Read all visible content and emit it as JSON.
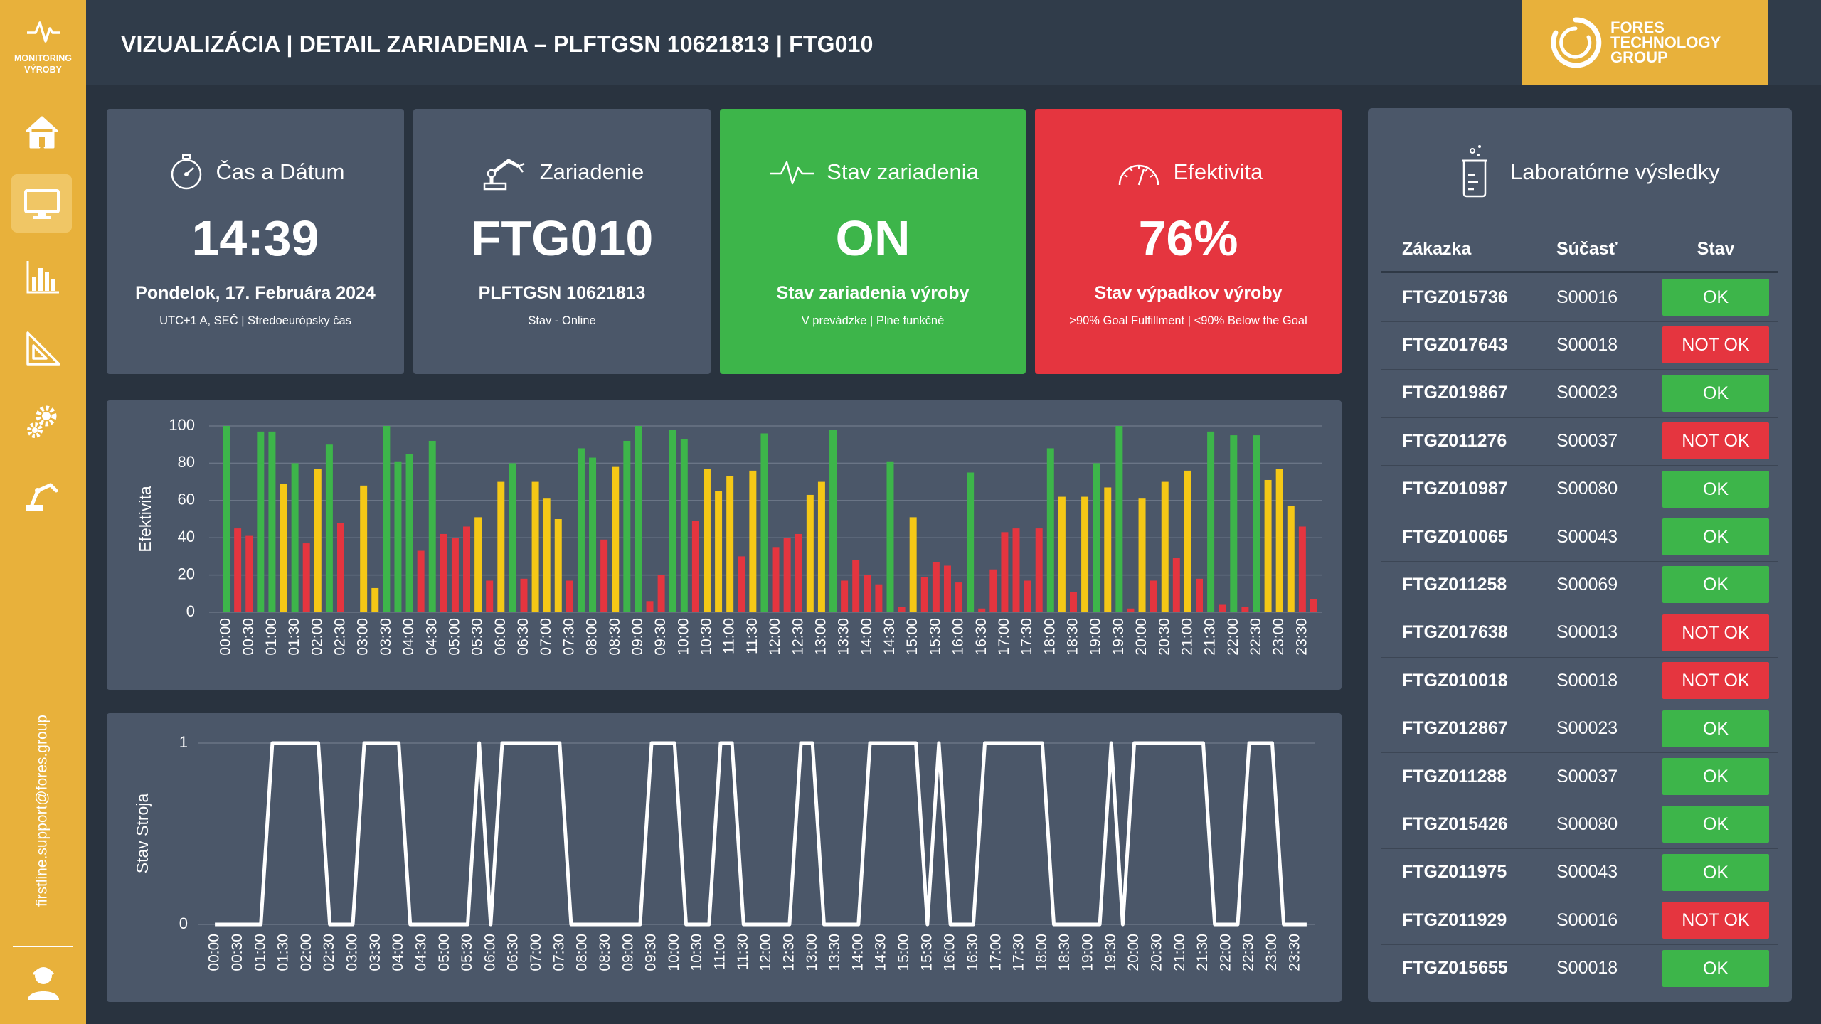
{
  "sidebar": {
    "logo_lines": [
      "MONITORING",
      "VÝROBY"
    ],
    "email": "firstline.support@fores.group"
  },
  "header": {
    "title": "VIZUALIZÁCIA | DETAIL ZARIADENIA – PLFTGSN 10621813 | FTG010",
    "brand_lines": [
      "FORES",
      "TECHNOLOGY",
      "GROUP"
    ]
  },
  "cards": [
    {
      "title": "Čas a Dátum",
      "value": "14:39",
      "subtitle": "Pondelok, 17. Februára 2024",
      "note": "UTC+1 A, SEČ | Stredoeurópsky čas"
    },
    {
      "title": "Zariadenie",
      "value": "FTG010",
      "subtitle": "PLFTGSN 10621813",
      "note": "Stav - Online"
    },
    {
      "title": "Stav zariadenia",
      "value": "ON",
      "subtitle": "Stav zariadenia výroby",
      "note": "V prevádzke | Plne funkčné"
    },
    {
      "title": "Efektivita",
      "value": "76%",
      "subtitle": "Stav výpadkov výroby",
      "note": ">90% Goal Fulfillment | <90% Below the Goal"
    }
  ],
  "lab": {
    "title": "Laboratórne výsledky",
    "columns": [
      "Zákazka",
      "Súčasť",
      "Stav"
    ],
    "rows": [
      {
        "order": "FTGZ015736",
        "part": "S00016",
        "status": "OK",
        "color": "#3db54a"
      },
      {
        "order": "FTGZ017643",
        "part": "S00018",
        "status": "NOT OK",
        "color": "#e5353f"
      },
      {
        "order": "FTGZ019867",
        "part": "S00023",
        "status": "OK",
        "color": "#3db54a"
      },
      {
        "order": "FTGZ011276",
        "part": "S00037",
        "status": "NOT OK",
        "color": "#e5353f"
      },
      {
        "order": "FTGZ010987",
        "part": "S00080",
        "status": "OK",
        "color": "#3db54a"
      },
      {
        "order": "FTGZ010065",
        "part": "S00043",
        "status": "OK",
        "color": "#3db54a"
      },
      {
        "order": "FTGZ011258",
        "part": "S00069",
        "status": "OK",
        "color": "#3db54a"
      },
      {
        "order": "FTGZ017638",
        "part": "S00013",
        "status": "NOT OK",
        "color": "#e5353f"
      },
      {
        "order": "FTGZ010018",
        "part": "S00018",
        "status": "NOT OK",
        "color": "#e5353f"
      },
      {
        "order": "FTGZ012867",
        "part": "S00023",
        "status": "OK",
        "color": "#3db54a"
      },
      {
        "order": "FTGZ011288",
        "part": "S00037",
        "status": "OK",
        "color": "#3db54a"
      },
      {
        "order": "FTGZ015426",
        "part": "S00080",
        "status": "OK",
        "color": "#3db54a"
      },
      {
        "order": "FTGZ011975",
        "part": "S00043",
        "status": "OK",
        "color": "#3db54a"
      },
      {
        "order": "FTGZ011929",
        "part": "S00016",
        "status": "NOT OK",
        "color": "#e5353f"
      },
      {
        "order": "FTGZ015655",
        "part": "S00018",
        "status": "OK",
        "color": "#3db54a"
      }
    ]
  },
  "chart_data": [
    {
      "type": "bar",
      "ylabel": "Efektivita",
      "categories": [
        "00:00",
        null,
        "00:30",
        null,
        "01:00",
        null,
        "01:30",
        null,
        "02:00",
        null,
        "02:30",
        null,
        "03:00",
        null,
        "03:30",
        null,
        "04:00",
        null,
        "04:30",
        null,
        "05:00",
        null,
        "05:30",
        null,
        "06:00",
        null,
        "06:30",
        null,
        "07:00",
        null,
        "07:30",
        null,
        "08:00",
        null,
        "08:30",
        null,
        "09:00",
        null,
        "09:30",
        null,
        "10:00",
        null,
        "10:30",
        null,
        "11:00",
        null,
        "11:30",
        null,
        "12:00",
        null,
        "12:30",
        null,
        "13:00",
        null,
        "13:30",
        null,
        "14:00",
        null,
        "14:30",
        null,
        "15:00",
        null,
        "15:30",
        null,
        "16:00",
        null,
        "16:30",
        null,
        "17:00",
        null,
        "17:30",
        null,
        "18:00",
        null,
        "18:30",
        null,
        "19:00",
        null,
        "19:30",
        null,
        "20:00",
        null,
        "20:30",
        null,
        "21:00",
        null,
        "21:30",
        null,
        "22:00",
        null,
        "22:30",
        null,
        "23:00",
        null,
        "23:30",
        null
      ],
      "values": [
        100,
        45,
        41,
        97,
        97,
        69,
        80,
        37,
        77,
        90,
        48,
        0,
        68,
        13,
        100,
        81,
        85,
        33,
        92,
        42,
        40,
        46,
        51,
        17,
        70,
        80,
        18,
        70,
        61,
        50,
        17,
        88,
        83,
        39,
        78,
        92,
        100,
        6,
        20,
        98,
        93,
        49,
        77,
        65,
        73,
        30,
        76,
        96,
        35,
        40,
        42,
        63,
        70,
        98,
        17,
        28,
        20,
        15,
        81,
        3,
        51,
        19,
        27,
        25,
        16,
        75,
        2,
        23,
        43,
        45,
        17,
        45,
        88,
        62,
        11,
        62,
        80,
        67,
        100,
        2,
        61,
        17,
        70,
        29,
        76,
        18,
        97,
        4,
        95,
        3,
        95,
        71,
        77,
        57,
        46,
        7
      ],
      "colors": [
        "#3db54a",
        "#e5353f",
        "#e5353f",
        "#3db54a",
        "#3db54a",
        "#f5c816",
        "#3db54a",
        "#e5353f",
        "#f5c816",
        "#3db54a",
        "#e5353f",
        "#e5353f",
        "#f5c816",
        "#f5c816",
        "#3db54a",
        "#3db54a",
        "#3db54a",
        "#e5353f",
        "#3db54a",
        "#e5353f",
        "#e5353f",
        "#e5353f",
        "#f5c816",
        "#e5353f",
        "#f5c816",
        "#3db54a",
        "#e5353f",
        "#f5c816",
        "#f5c816",
        "#f5c816",
        "#e5353f",
        "#3db54a",
        "#3db54a",
        "#e5353f",
        "#f5c816",
        "#3db54a",
        "#3db54a",
        "#e5353f",
        "#e5353f",
        "#3db54a",
        "#3db54a",
        "#e5353f",
        "#f5c816",
        "#f5c816",
        "#f5c816",
        "#e5353f",
        "#f5c816",
        "#3db54a",
        "#e5353f",
        "#e5353f",
        "#e5353f",
        "#f5c816",
        "#f5c816",
        "#3db54a",
        "#e5353f",
        "#e5353f",
        "#e5353f",
        "#e5353f",
        "#3db54a",
        "#e5353f",
        "#f5c816",
        "#e5353f",
        "#e5353f",
        "#e5353f",
        "#e5353f",
        "#3db54a",
        "#e5353f",
        "#e5353f",
        "#e5353f",
        "#e5353f",
        "#e5353f",
        "#e5353f",
        "#3db54a",
        "#f5c816",
        "#e5353f",
        "#f5c816",
        "#3db54a",
        "#f5c816",
        "#3db54a",
        "#e5353f",
        "#f5c816",
        "#e5353f",
        "#f5c816",
        "#e5353f",
        "#f5c816",
        "#e5353f",
        "#3db54a",
        "#e5353f",
        "#3db54a",
        "#e5353f",
        "#3db54a",
        "#f5c816",
        "#f5c816",
        "#f5c816",
        "#e5353f",
        "#e5353f"
      ],
      "ylim": [
        0,
        100
      ],
      "yticks": [
        0,
        20,
        40,
        60,
        80,
        100
      ],
      "grid": true
    },
    {
      "type": "line",
      "ylabel": "Stav Stroja",
      "categories": [
        "00:00",
        null,
        "00:30",
        null,
        "01:00",
        null,
        "01:30",
        null,
        "02:00",
        null,
        "02:30",
        null,
        "03:00",
        null,
        "03:30",
        null,
        "04:00",
        null,
        "04:30",
        null,
        "05:00",
        null,
        "05:30",
        null,
        "06:00",
        null,
        "06:30",
        null,
        "07:00",
        null,
        "07:30",
        null,
        "08:00",
        null,
        "08:30",
        null,
        "09:00",
        null,
        "09:30",
        null,
        "10:00",
        null,
        "10:30",
        null,
        "11:00",
        null,
        "11:30",
        null,
        "12:00",
        null,
        "12:30",
        null,
        "13:00",
        null,
        "13:30",
        null,
        "14:00",
        null,
        "14:30",
        null,
        "15:00",
        null,
        "15:30",
        null,
        "16:00",
        null,
        "16:30",
        null,
        "17:00",
        null,
        "17:30",
        null,
        "18:00",
        null,
        "18:30",
        null,
        "19:00",
        null,
        "19:30",
        null,
        "20:00",
        null,
        "20:30",
        null,
        "21:00",
        null,
        "21:30",
        null,
        "22:00",
        null,
        "22:30",
        null,
        "23:00",
        null,
        "23:30",
        null
      ],
      "values": [
        0,
        0,
        0,
        0,
        0,
        1,
        1,
        1,
        1,
        1,
        0,
        0,
        0,
        1,
        1,
        1,
        1,
        0,
        0,
        0,
        0,
        0,
        0,
        1,
        0,
        1,
        1,
        1,
        1,
        1,
        1,
        0,
        0,
        0,
        0,
        0,
        0,
        0,
        1,
        1,
        1,
        0,
        0,
        0,
        1,
        1,
        0,
        0,
        0,
        0,
        0,
        1,
        1,
        0,
        0,
        0,
        0,
        1,
        1,
        1,
        1,
        1,
        0,
        1,
        0,
        0,
        0,
        1,
        1,
        1,
        1,
        1,
        1,
        0,
        0,
        0,
        0,
        0,
        1,
        0,
        1,
        1,
        1,
        1,
        1,
        1,
        1,
        0,
        0,
        0,
        1,
        1,
        1,
        0,
        0,
        0
      ],
      "color": "#ffffff",
      "ylim": [
        0,
        1
      ],
      "yticks": [
        0,
        1
      ],
      "grid": true
    }
  ]
}
